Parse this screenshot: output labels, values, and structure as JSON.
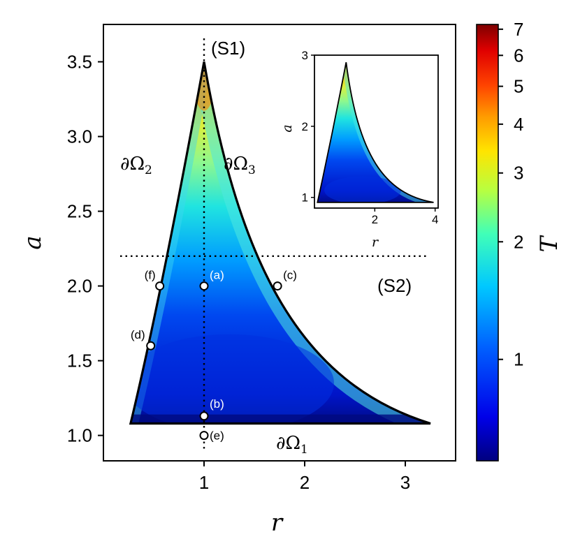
{
  "chart_data": [
    {
      "type": "heatmap",
      "xlabel": "r",
      "ylabel": "a",
      "xlim": [
        0.0,
        3.5
      ],
      "ylim": [
        0.83,
        3.75
      ],
      "xticks": [
        "1",
        "2",
        "3"
      ],
      "yticks": [
        "1.0",
        "1.5",
        "2.0",
        "2.5",
        "3.0",
        "3.5"
      ],
      "region": {
        "vertices": [
          {
            "r": 0.27,
            "a": 1.08
          },
          {
            "r": 1.0,
            "a": 3.5
          },
          {
            "r": 3.25,
            "a": 1.08
          }
        ],
        "boundary_labels": [
          {
            "base": "∂Ω",
            "sub": "2"
          },
          {
            "base": "∂Ω",
            "sub": "3"
          },
          {
            "base": "∂Ω",
            "sub": "1"
          }
        ]
      },
      "section_lines": [
        {
          "label": "(S1)",
          "orientation": "vertical",
          "r": 1.0
        },
        {
          "label": "(S2)",
          "orientation": "horizontal",
          "a": 2.2
        }
      ],
      "points": [
        {
          "label": "(a)",
          "r": 1.0,
          "a": 2.0
        },
        {
          "label": "(b)",
          "r": 1.0,
          "a": 1.13
        },
        {
          "label": "(c)",
          "r": 1.73,
          "a": 2.0
        },
        {
          "label": "(d)",
          "r": 0.47,
          "a": 1.6
        },
        {
          "label": "(e)",
          "r": 1.0,
          "a": 1.0
        },
        {
          "label": "(f)",
          "r": 0.56,
          "a": 2.0
        }
      ],
      "colorbar": {
        "label": "T",
        "scale": "log",
        "range": [
          0.55,
          7.2
        ],
        "ticks": [
          "1",
          "2",
          "3",
          "4",
          "5",
          "6",
          "7"
        ],
        "colormap": "jet",
        "colors": [
          "#00007f",
          "#0000ff",
          "#00bfff",
          "#7fff7f",
          "#ffef00",
          "#ff4500",
          "#7f0000"
        ]
      }
    },
    {
      "type": "heatmap",
      "inset": true,
      "xlabel": "r",
      "ylabel": "a",
      "xlim": [
        0.0,
        4.1
      ],
      "ylim": [
        0.85,
        3.0
      ],
      "xticks": [
        "2",
        "4"
      ],
      "yticks": [
        "1",
        "2",
        "3"
      ],
      "region": {
        "vertices": [
          {
            "r": 0.1,
            "a": 0.93
          },
          {
            "r": 1.05,
            "a": 2.9
          },
          {
            "r": 3.95,
            "a": 0.93
          }
        ]
      },
      "colorbar": {
        "label": "T",
        "scale": "log",
        "range": [
          0.55,
          7.2
        ]
      }
    }
  ]
}
